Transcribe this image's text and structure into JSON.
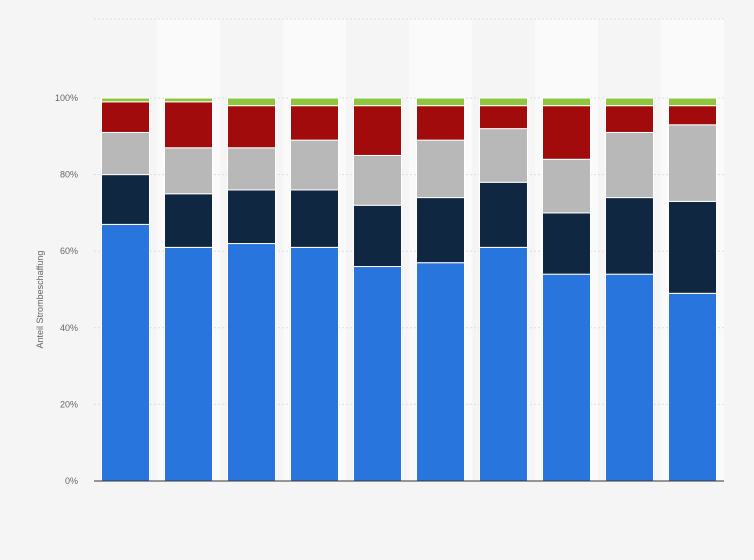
{
  "chart_data": {
    "type": "bar",
    "stacked": true,
    "categories": [
      "",
      "",
      "",
      "",
      "",
      "",
      "",
      "",
      "",
      ""
    ],
    "series": [
      {
        "color": "#2876dd",
        "values": [
          67,
          61,
          62,
          61,
          56,
          57,
          61,
          54,
          54,
          49
        ]
      },
      {
        "color": "#0f2740",
        "values": [
          13,
          14,
          14,
          15,
          16,
          17,
          17,
          16,
          20,
          24
        ]
      },
      {
        "color": "#b8b8b8",
        "values": [
          11,
          12,
          11,
          13,
          13,
          15,
          14,
          14,
          17,
          20
        ]
      },
      {
        "color": "#a10b0b",
        "values": [
          8,
          12,
          11,
          9,
          13,
          9,
          6,
          14,
          7,
          5
        ]
      },
      {
        "color": "#8ec63f",
        "values": [
          1,
          1,
          2,
          2,
          2,
          2,
          2,
          2,
          2,
          2
        ]
      }
    ],
    "ylabel": "Anteil Strombeschaffung",
    "yticks": [
      "0%",
      "20%",
      "40%",
      "60%",
      "80%",
      "100%"
    ],
    "ylim": [
      0,
      100
    ],
    "grid": true,
    "legend": "none"
  }
}
